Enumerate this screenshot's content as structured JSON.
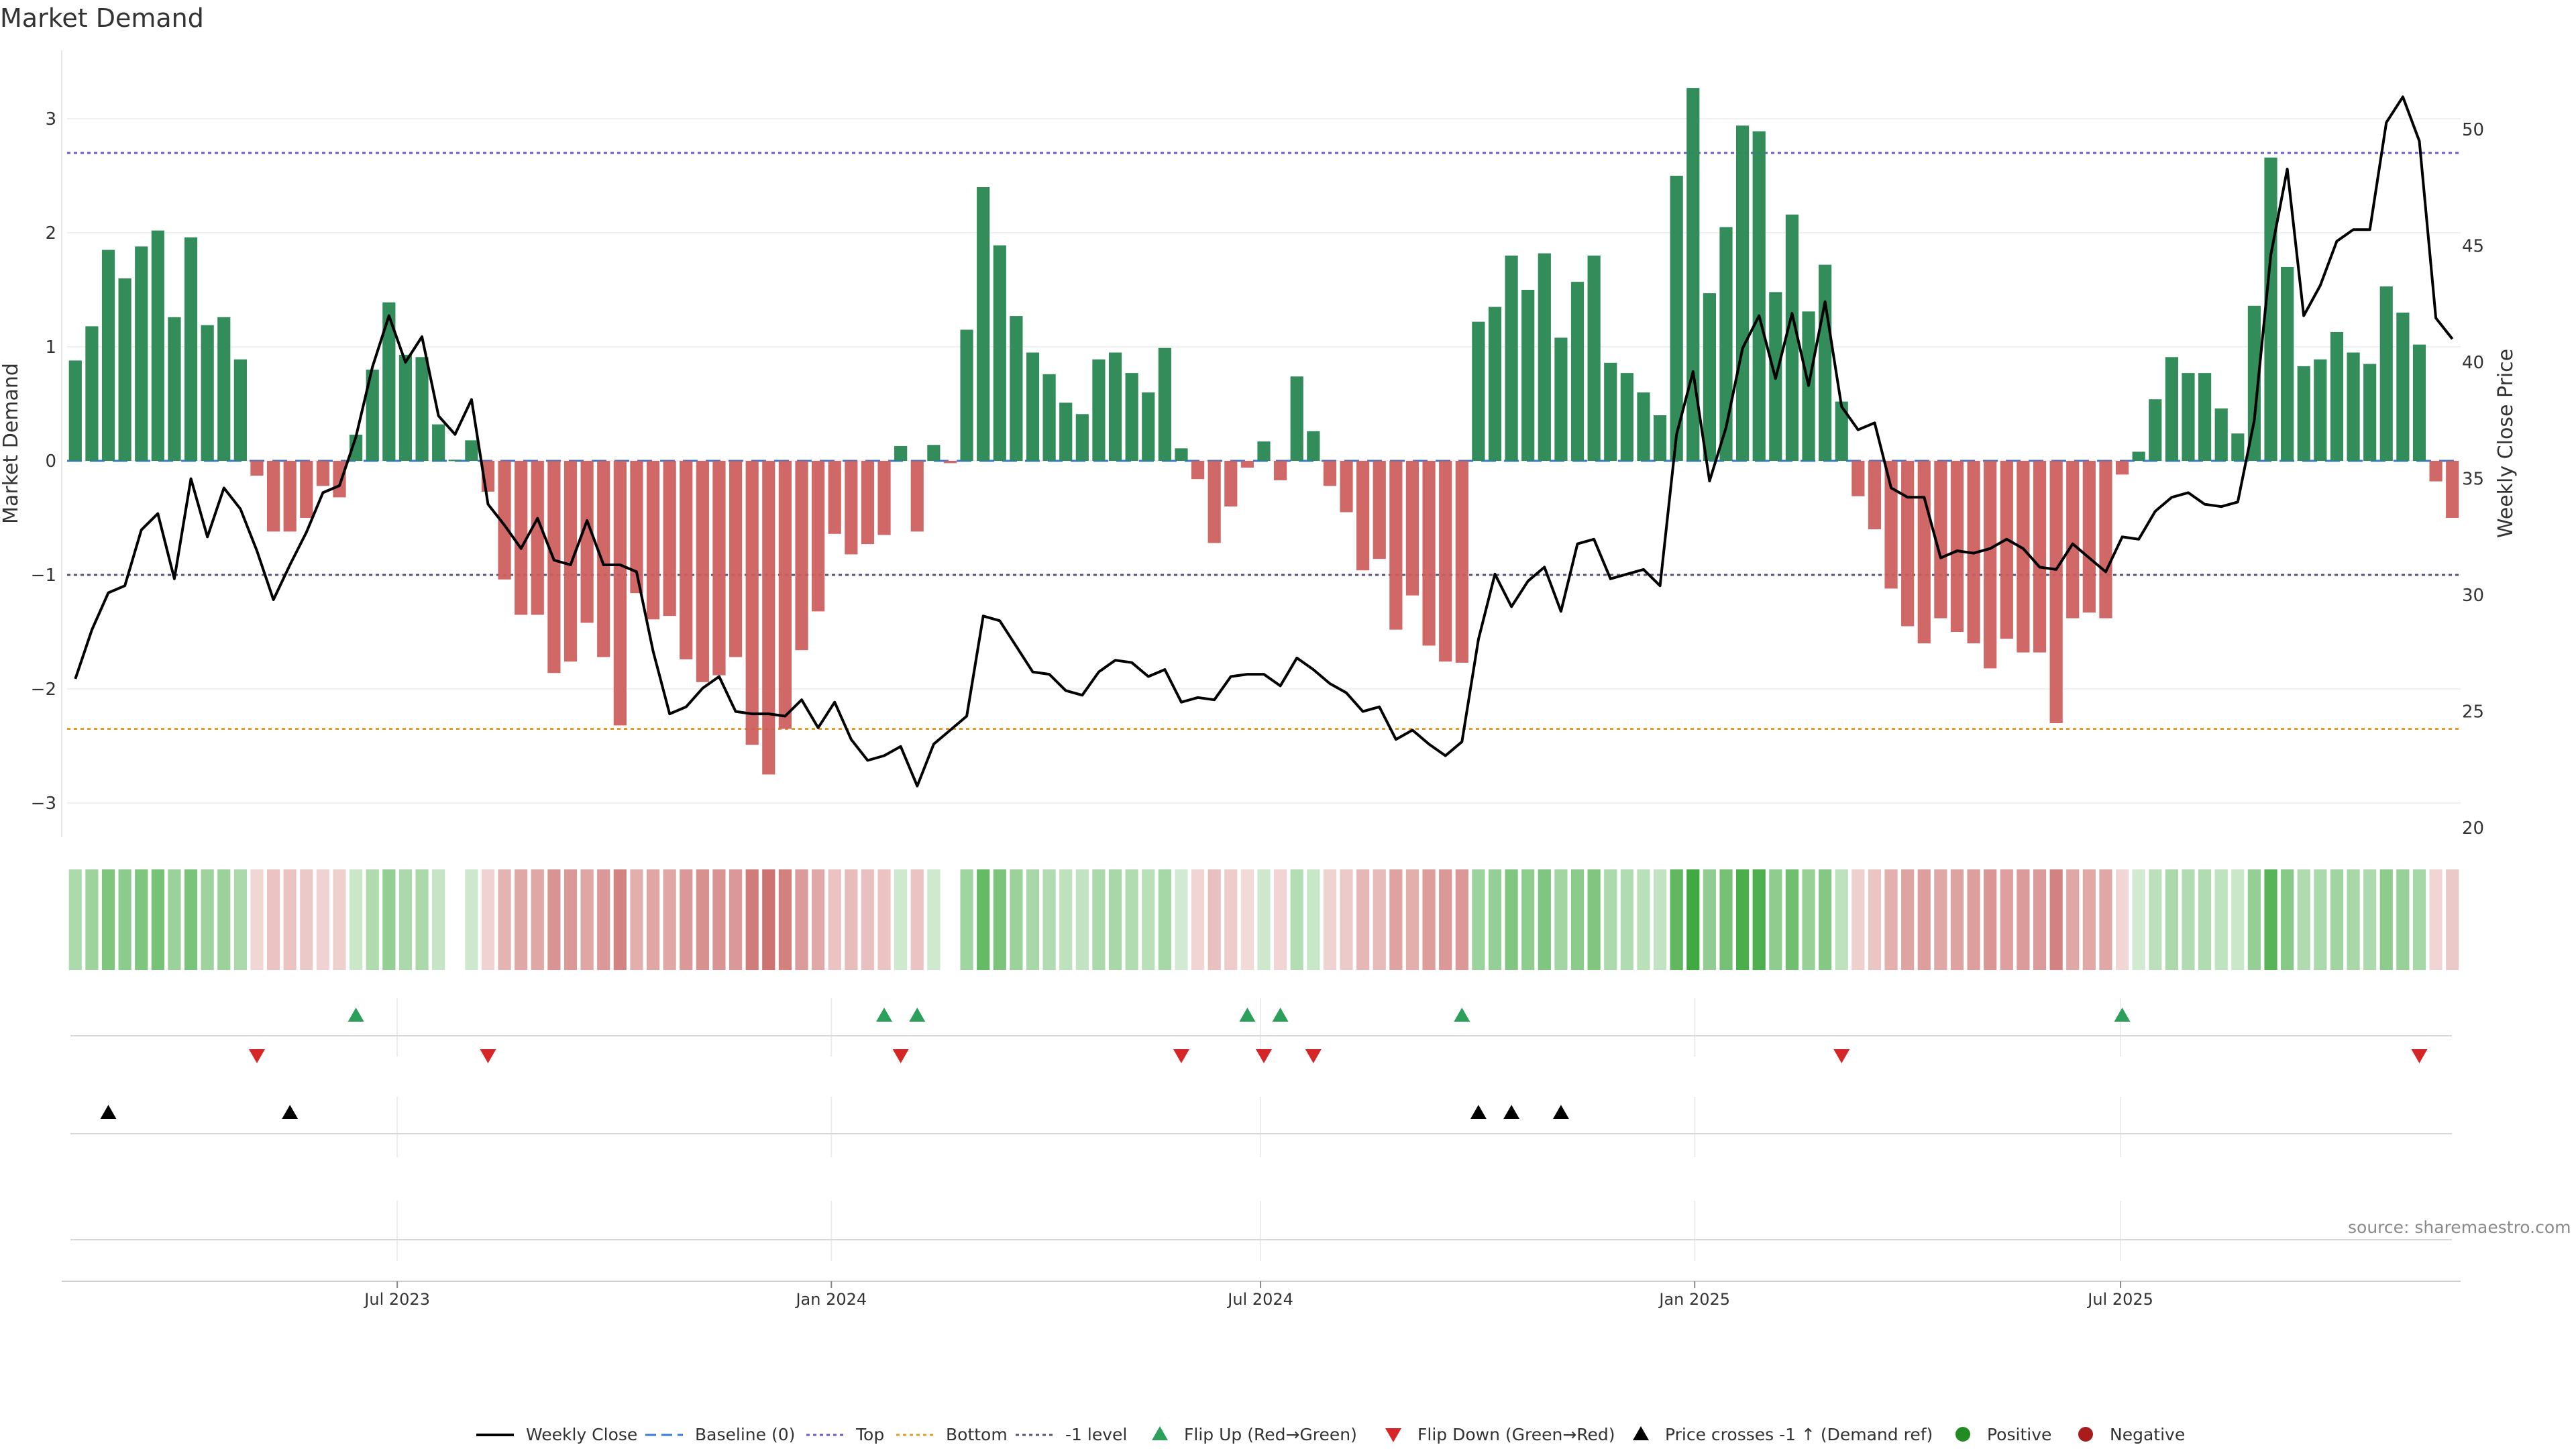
{
  "chart_data": {
    "type": "bar",
    "title": "Market Demand",
    "ylabel_left": "Market Demand",
    "ylabel_right": "Weekly Close Price",
    "ylim_left": [
      -3.3,
      3.6
    ],
    "ylim_right": [
      19.6,
      53.4
    ],
    "yticks_left": [
      "3",
      "2",
      "1",
      "0",
      "−1",
      "−2",
      "−3"
    ],
    "yticks_left_values": [
      3,
      2,
      1,
      0,
      -1,
      -2,
      -3
    ],
    "yticks_right": [
      "50",
      "45",
      "40",
      "35",
      "30",
      "25",
      "20"
    ],
    "yticks_right_values": [
      50,
      45,
      40,
      35,
      30,
      25,
      20
    ],
    "xticks": [
      "Jul 2023",
      "Jan 2024",
      "Jul 2024",
      "Jan 2025",
      "Jul 2025"
    ],
    "xtick_weeks": [
      20,
      46.3,
      72.3,
      98.6,
      124.4
    ],
    "levels": {
      "baseline": 0,
      "top": 2.7,
      "bottom": -2.35,
      "minus_one": -1
    },
    "colors": {
      "positive": "#2e8b57",
      "negative": "#cd5c5c",
      "price": "#000000",
      "top_line": "#6a5acd",
      "bottom_line": "#e69b2e",
      "minus_one_line": "#555577",
      "flip_up": "#2ca05a",
      "flip_down": "#d62728",
      "cross": "#000000",
      "legend_positive": "#228b22",
      "legend_negative": "#a81c1c"
    },
    "demand": [
      0.88,
      1.18,
      1.85,
      1.6,
      1.88,
      2.02,
      1.26,
      1.96,
      1.19,
      1.26,
      0.89,
      -0.13,
      -0.62,
      -0.62,
      -0.5,
      -0.22,
      -0.32,
      0.23,
      0.8,
      1.39,
      0.93,
      0.91,
      0.32,
      0.01,
      0.18,
      -0.27,
      -1.04,
      -1.35,
      -1.35,
      -1.86,
      -1.76,
      -1.42,
      -1.72,
      -2.32,
      -1.16,
      -1.39,
      -1.36,
      -1.74,
      -1.94,
      -1.88,
      -1.72,
      -2.49,
      -2.75,
      -2.35,
      -1.66,
      -1.32,
      -0.64,
      -0.82,
      -0.73,
      -0.65,
      0.13,
      -0.62,
      0.14,
      -0.02,
      1.15,
      2.4,
      1.89,
      1.27,
      0.95,
      0.76,
      0.51,
      0.41,
      0.89,
      0.95,
      0.77,
      0.6,
      0.99,
      0.11,
      -0.16,
      -0.72,
      -0.4,
      -0.06,
      0.17,
      -0.17,
      0.74,
      0.26,
      -0.22,
      -0.45,
      -0.96,
      -0.86,
      -1.48,
      -1.18,
      -1.62,
      -1.76,
      -1.77,
      1.22,
      1.35,
      1.8,
      1.5,
      1.82,
      1.08,
      1.57,
      1.8,
      0.86,
      0.77,
      0.6,
      0.4,
      2.5,
      3.27,
      1.47,
      2.05,
      2.94,
      2.89,
      1.48,
      2.16,
      1.31,
      1.72,
      0.52,
      -0.31,
      -0.6,
      -1.12,
      -1.45,
      -1.6,
      -1.38,
      -1.5,
      -1.6,
      -1.82,
      -1.56,
      -1.68,
      -1.68,
      -2.3,
      -1.38,
      -1.33,
      -1.38,
      -0.12,
      0.08,
      0.54,
      0.91,
      0.77,
      0.77,
      0.46,
      0.24,
      1.36,
      2.66,
      1.7,
      0.83,
      0.89,
      1.13,
      0.95,
      0.85,
      1.53,
      1.3,
      1.02,
      -0.18,
      -0.5
    ],
    "price": [
      26.4,
      28.5,
      30.1,
      30.4,
      32.8,
      33.5,
      30.7,
      35.0,
      32.5,
      34.6,
      33.7,
      31.9,
      29.8,
      31.3,
      32.7,
      34.4,
      34.7,
      36.8,
      39.8,
      42.0,
      40.0,
      41.1,
      37.7,
      36.9,
      38.4,
      33.9,
      33.0,
      32.0,
      33.3,
      31.5,
      31.3,
      33.2,
      31.3,
      31.3,
      31.0,
      27.6,
      24.9,
      25.2,
      26.0,
      26.5,
      25.0,
      24.9,
      24.9,
      24.8,
      25.5,
      24.3,
      25.4,
      23.8,
      22.9,
      23.1,
      23.5,
      21.8,
      23.6,
      24.2,
      24.8,
      29.1,
      28.9,
      27.8,
      26.7,
      26.6,
      25.9,
      25.7,
      26.7,
      27.2,
      27.1,
      26.5,
      26.8,
      25.4,
      25.6,
      25.5,
      26.5,
      26.6,
      26.6,
      26.1,
      27.3,
      26.8,
      26.2,
      25.8,
      25.0,
      25.2,
      23.8,
      24.2,
      23.6,
      23.1,
      23.7,
      28.1,
      30.9,
      29.5,
      30.6,
      31.2,
      29.3,
      32.2,
      32.4,
      30.7,
      30.9,
      31.1,
      30.4,
      36.9,
      39.6,
      34.9,
      37.2,
      40.6,
      42.0,
      39.3,
      42.1,
      39.0,
      42.6,
      38.1,
      37.1,
      37.4,
      34.6,
      34.2,
      34.2,
      31.6,
      31.9,
      31.8,
      32.0,
      32.4,
      32.0,
      31.2,
      31.1,
      32.2,
      31.6,
      31.0,
      32.5,
      32.4,
      33.6,
      34.2,
      34.4,
      33.9,
      33.8,
      34.0,
      37.5,
      44.6,
      48.3,
      42.0,
      43.3,
      45.2,
      45.7,
      45.7,
      50.3,
      51.4,
      49.5,
      41.9,
      41.0
    ],
    "flip_up_weeks": [
      17,
      49,
      51,
      71,
      73,
      84,
      124
    ],
    "flip_down_weeks": [
      11,
      25,
      50,
      67,
      72,
      75,
      107,
      142
    ],
    "cross_up_weeks": [
      2,
      13,
      85,
      87,
      90
    ],
    "legend": [
      {
        "key": "weekly_close",
        "label": "Weekly Close"
      },
      {
        "key": "baseline",
        "label": "Baseline (0)"
      },
      {
        "key": "top",
        "label": "Top"
      },
      {
        "key": "bottom",
        "label": "Bottom"
      },
      {
        "key": "minus_one",
        "label": "-1 level"
      },
      {
        "key": "flip_up",
        "label": "Flip Up (Red→Green)"
      },
      {
        "key": "flip_down",
        "label": "Flip Down (Green→Red)"
      },
      {
        "key": "cross_up",
        "label": "Price crosses -1 ↑ (Demand ref)"
      },
      {
        "key": "positive",
        "label": "Positive"
      },
      {
        "key": "negative",
        "label": "Negative"
      }
    ],
    "source": "source: sharemaestro.com"
  }
}
